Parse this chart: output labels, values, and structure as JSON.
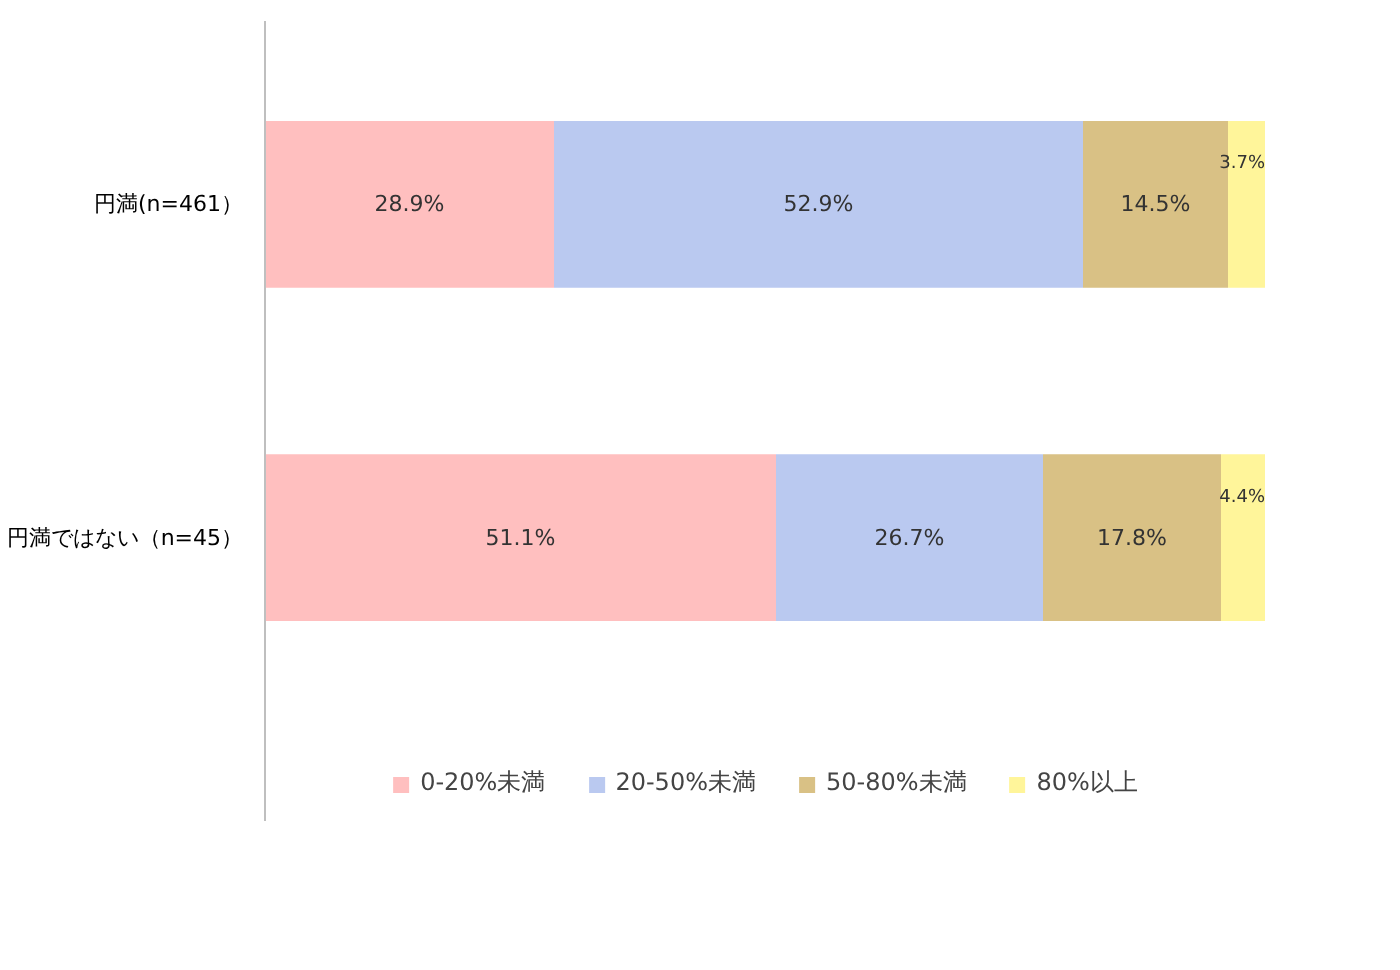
{
  "chart_data": {
    "type": "bar",
    "orientation": "horizontal",
    "stacked": true,
    "categories": [
      "円満(n=461）",
      "円満ではない（n=45）"
    ],
    "xlim": [
      0,
      100
    ],
    "tick_labels": "y",
    "legend": "bottom",
    "series": [
      {
        "name": "0-20%未満",
        "color": "#ffbfbf",
        "values": [
          28.9,
          51.1
        ],
        "value_labels": [
          "28.9%",
          "51.1%"
        ]
      },
      {
        "name": "20-50%未満",
        "color": "#bac9f0",
        "values": [
          52.9,
          26.7
        ],
        "value_labels": [
          "52.9%",
          "26.7%"
        ]
      },
      {
        "name": "50-80%未満",
        "color": "#d9c185",
        "values": [
          14.5,
          17.8
        ],
        "value_labels": [
          "14.5%",
          "17.8%"
        ]
      },
      {
        "name": "80%以上",
        "color": "#fff59a",
        "values": [
          3.7,
          4.4
        ],
        "value_labels": [
          "3.7%",
          "4.4%"
        ]
      }
    ]
  }
}
